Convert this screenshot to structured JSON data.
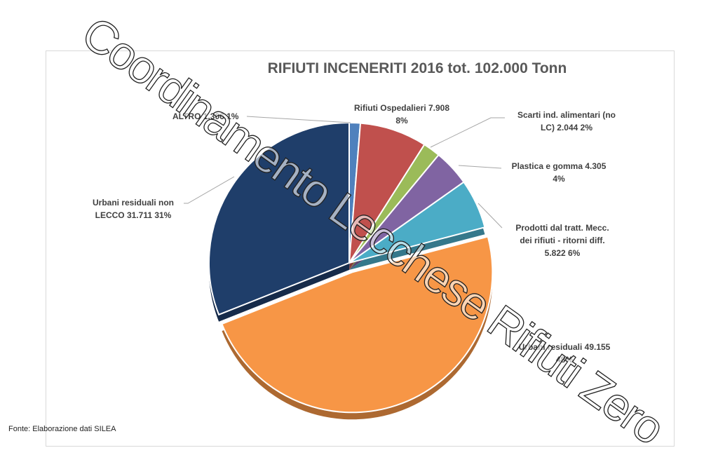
{
  "chart_data": {
    "type": "pie",
    "title": "RIFIUTI INCENERITI 2016 tot. 102.000 Tonn",
    "unit": "Tonn",
    "slices": [
      {
        "label": "ALTRO 1.306 1%",
        "value": 1306,
        "percent": 1,
        "color": "#4f81bd"
      },
      {
        "label": "Rifiuti Ospedalieri 7.908 8%",
        "value": 7908,
        "percent": 8,
        "color": "#c0504d"
      },
      {
        "label": "Scarti ind. alimentari (no LC) 2.044 2%",
        "value": 2044,
        "percent": 2,
        "color": "#9bbb59"
      },
      {
        "label": "Plastica e gomma 4.305 4%",
        "value": 4305,
        "percent": 4,
        "color": "#8064a2"
      },
      {
        "label": "Prodotti dal tratt. Mecc. dei rifiuti - ritorni diff. 5.822 6%",
        "value": 5822,
        "percent": 6,
        "color": "#4bacc6"
      },
      {
        "label": "Urbani residuali 49.155 48%",
        "value": 49155,
        "percent": 48,
        "color": "#f79646"
      },
      {
        "label": "Urbani residuali non LECCO 31.711 31%",
        "value": 31711,
        "percent": 31,
        "color": "#1f3e6a"
      }
    ],
    "start_angle": "12 o'clock",
    "direction": "clockwise"
  },
  "labels": {
    "altro": "ALTRO 1.306 1%",
    "osp_1": "Rifiuti Ospedalieri 7.908",
    "osp_2": "8%",
    "scarti_1": "Scarti ind. alimentari (no",
    "scarti_2": "LC) 2.044 2%",
    "plastica_1": "Plastica e gomma 4.305",
    "plastica_2": "4%",
    "prodotti_1": "Prodotti dal tratt. Mecc.",
    "prodotti_2": "dei rifiuti - ritorni diff.",
    "prodotti_3": "5.822 6%",
    "urbani_1": "Urbani residuali 49.155",
    "urbani_2": "48%",
    "nonlecco_1": "Urbani residuali non",
    "nonlecco_2": "LECCO 31.711 31%"
  },
  "source": "Fonte: Elaborazione dati SILEA",
  "watermark": "Coordinamento Lecchese Rifiuti Zero"
}
